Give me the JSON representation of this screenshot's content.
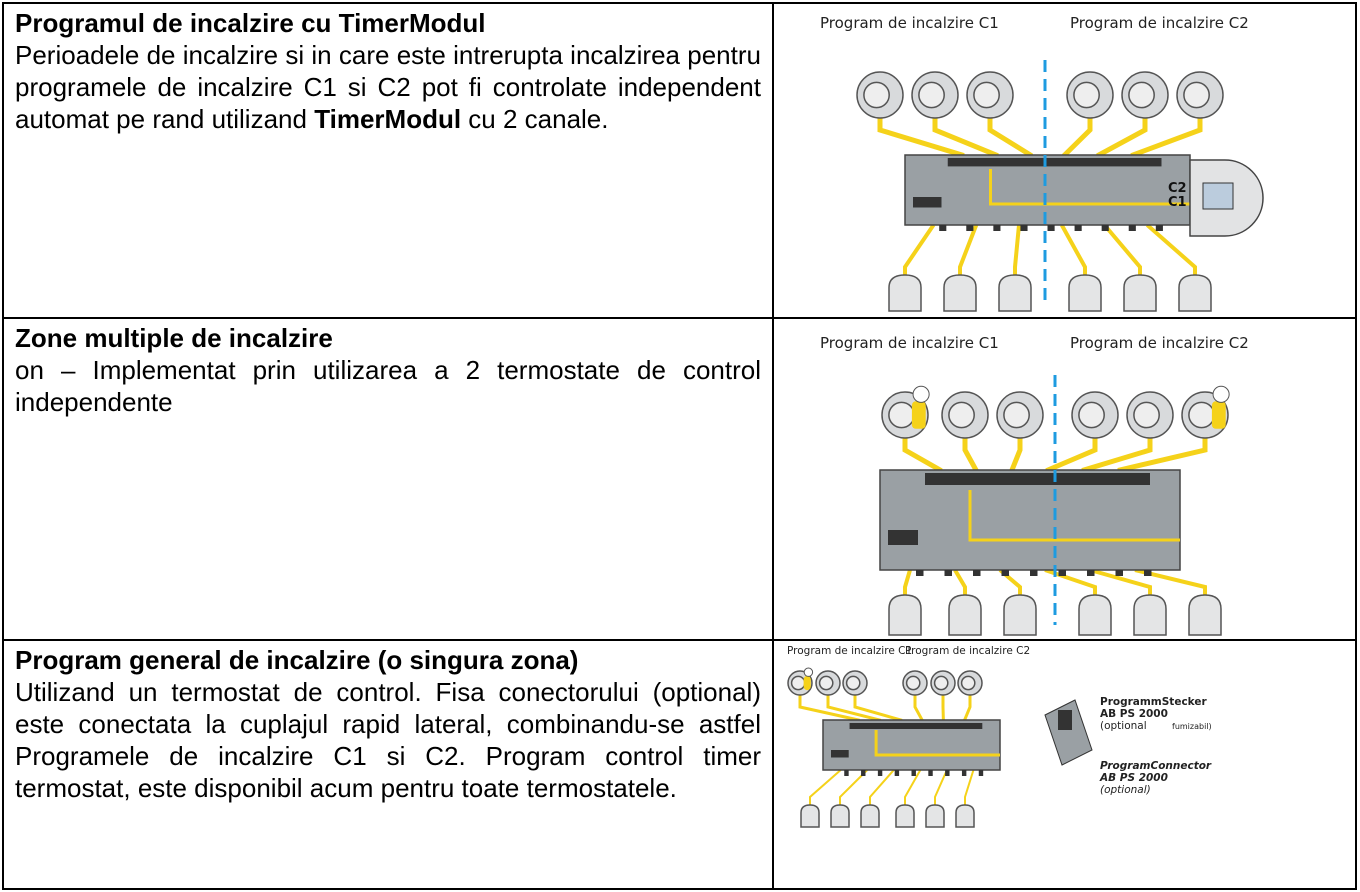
{
  "rows": [
    {
      "title": "Programul de incalzire cu TimerModul",
      "body": [
        {
          "text": "Perioadele de incalzire si in care este intrerupta incalzirea pentru programele de incalzire C1 si C2 pot fi controlate independent automat pe rand utilizand "
        },
        {
          "text": "TimerModul",
          "bold": true
        },
        {
          "text": " cu 2 canale."
        }
      ],
      "diagram": {
        "labels": [
          "Program de incalzire C1",
          "Program de incalzire C2"
        ],
        "channels": [
          "C2",
          "C1"
        ]
      }
    },
    {
      "title": "Zone multiple de incalzire",
      "body": [
        {
          "text": "on – Implementat prin utilizarea a 2 termostate de control independente"
        }
      ],
      "diagram": {
        "labels": [
          "Program de incalzire C1",
          "Program de incalzire C2"
        ]
      }
    },
    {
      "title": "Program general de incalzire (o singura zona)",
      "body": [
        {
          "text": "Utilizand un termostat de control. Fisa conectorului (optional) este conectata la cuplajul rapid lateral, combinandu-se astfel Programele de incalzire C1 si C2. Program control timer termostat, este disponibil acum pentru toate termostatele."
        }
      ],
      "diagram": {
        "labels": [
          "Program de incalzire C1",
          "Program de incalzire C2"
        ],
        "callouts": [
          [
            "ProgrammStecker",
            "AB PS 2000",
            "(optional",
            "fumizabil)"
          ],
          [
            "ProgramConnector",
            "AB PS 2000",
            "(optional)"
          ]
        ]
      }
    }
  ]
}
